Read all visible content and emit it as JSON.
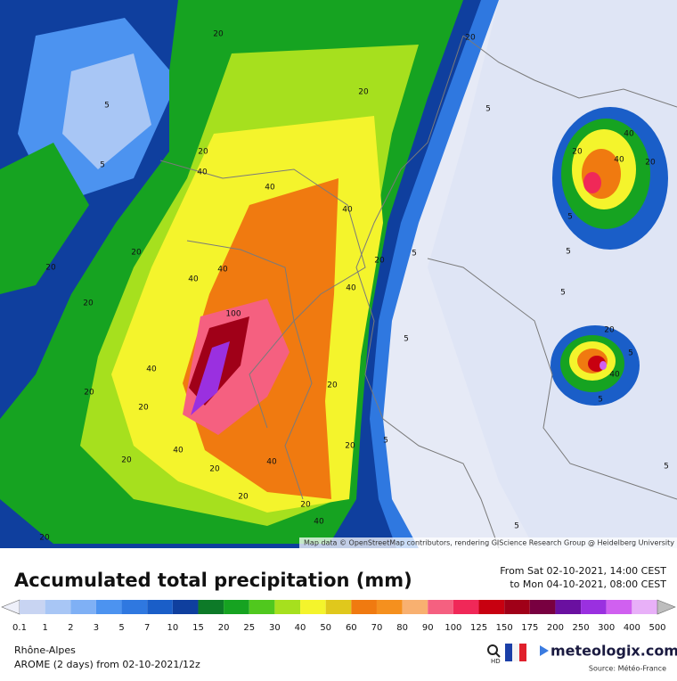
{
  "map": {
    "attribution": "Map data © OpenStreetMap contributors, rendering GIScience Research Group @ Heidelberg University",
    "contour_labels": [
      "20",
      "20",
      "5",
      "20",
      "5",
      "20",
      "5",
      "40",
      "40",
      "40",
      "20",
      "20",
      "40",
      "40",
      "5",
      "20",
      "40",
      "5",
      "20",
      "100",
      "40",
      "20",
      "20",
      "20",
      "5",
      "40",
      "5",
      "20",
      "20",
      "40",
      "20",
      "20",
      "20",
      "40",
      "20",
      "20",
      "5",
      "40",
      "5",
      "40",
      "40",
      "20",
      "20",
      "5",
      "5",
      "5",
      "5"
    ]
  },
  "header": {
    "title": "Accumulated total precipitation (mm)",
    "period_from": "From Sat 02-10-2021, 14:00 CEST",
    "period_to": "to Mon 04-10-2021, 08:00 CEST"
  },
  "legend": {
    "labels": [
      "0.1",
      "1",
      "2",
      "3",
      "5",
      "7",
      "10",
      "15",
      "20",
      "25",
      "30",
      "40",
      "50",
      "60",
      "70",
      "80",
      "90",
      "100",
      "125",
      "150",
      "175",
      "200",
      "250",
      "300",
      "400",
      "500"
    ],
    "colors": [
      "#eef0fa",
      "#c8d4f2",
      "#a8c6f5",
      "#7fb0f5",
      "#4c93f0",
      "#2f78e0",
      "#1a5ec8",
      "#0f3f9e",
      "#0d7a28",
      "#16a321",
      "#50c81e",
      "#a6e01e",
      "#f4f42c",
      "#e0c81c",
      "#f07a10",
      "#f5901e",
      "#f8b070",
      "#f56080",
      "#f02858",
      "#c80010",
      "#a00018",
      "#780040",
      "#6a10a0",
      "#9a30e0",
      "#d060f0",
      "#e8b0f8",
      "#bdbdbd"
    ]
  },
  "footer": {
    "region": "Rhône-Alpes",
    "model": "AROME (2 days) from 02-10-2021/12z",
    "hd": "HD",
    "brand": "meteologix.com",
    "source": "Source: Météo-France"
  }
}
